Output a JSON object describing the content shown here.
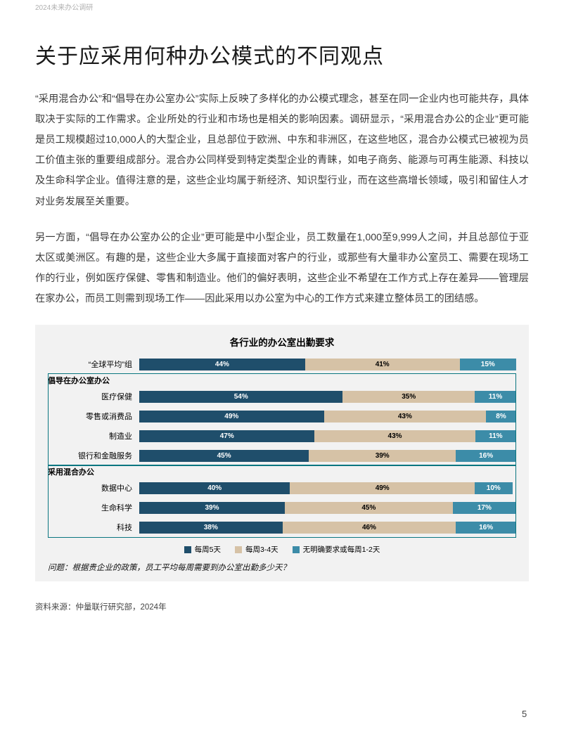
{
  "header": {
    "crumb": "2024未来办公调研"
  },
  "title": "关于应采用何种办公模式的不同观点",
  "paragraphs": [
    "“采用混合办公”和“倡导在办公室办公”实际上反映了多样化的办公模式理念，甚至在同一企业内也可能共存，具体取决于实际的工作需求。企业所处的行业和市场也是相关的影响因素。调研显示，“采用混合办公的企业”更可能是员工规模超过10,000人的大型企业，且总部位于欧洲、中东和非洲区，在这些地区，混合办公模式已被视为员工价值主张的重要组成部分。混合办公同样受到特定类型企业的青睐，如电子商务、能源与可再生能源、科技以及生命科学企业。值得注意的是，这些企业均属于新经济、知识型行业，而在这些高增长领域，吸引和留住人才对业务发展至关重要。",
    "另一方面，“倡导在办公室办公的企业”更可能是中小型企业，员工数量在1,000至9,999人之间，并且总部位于亚太区或美洲区。有趣的是，这些企业大多属于直接面对客户的行业，或那些有大量非办公室员工、需要在现场工作的行业，例如医疗保健、零售和制造业。他们的偏好表明，这些企业不希望在工作方式上存在差异——管理层在家办公，而员工则需到现场工作——因此采用以办公室为中心的工作方式来建立整体员工的团结感。"
  ],
  "chart": {
    "type": "stacked-bar-horizontal",
    "title": "各行业的办公室出勤要求",
    "background_color": "#f2f2f2",
    "box_border_color": "#0a7680",
    "series_colors": {
      "s1": "#1f4e6b",
      "s2": "#d6c2a6",
      "s3": "#3c8ca8"
    },
    "series_text_colors": {
      "s1": "#ffffff",
      "s2": "#000000",
      "s3": "#ffffff"
    },
    "legend": [
      {
        "key": "s1",
        "label": "每周5天"
      },
      {
        "key": "s2",
        "label": "每周3-4天"
      },
      {
        "key": "s3",
        "label": "无明确要求或每周1-2天"
      }
    ],
    "groups": [
      {
        "label": "“全球平均”组",
        "rows": [
          {
            "label": "",
            "s1": 44,
            "s2": 41,
            "s3": 15
          }
        ],
        "boxed": false,
        "inline": true
      },
      {
        "label": "倡导在办公室办公",
        "boxed": true,
        "rows": [
          {
            "label": "医疗保健",
            "s1": 54,
            "s2": 35,
            "s3": 11
          },
          {
            "label": "零售或消费品",
            "s1": 49,
            "s2": 43,
            "s3": 8
          },
          {
            "label": "制造业",
            "s1": 47,
            "s2": 43,
            "s3": 11
          },
          {
            "label": "银行和金融服务",
            "s1": 45,
            "s2": 39,
            "s3": 16
          }
        ]
      },
      {
        "label": "采用混合办公",
        "boxed": true,
        "rows": [
          {
            "label": "数据中心",
            "s1": 40,
            "s2": 49,
            "s3": 10
          },
          {
            "label": "生命科学",
            "s1": 39,
            "s2": 45,
            "s3": 17
          },
          {
            "label": "科技",
            "s1": 38,
            "s2": 46,
            "s3": 16
          }
        ]
      }
    ],
    "question": "问题：根据贵企业的政策，员工平均每周需要到办公室出勤多少天？",
    "source": "资料来源：仲量联行研究部，2024年"
  },
  "page_number": "5"
}
